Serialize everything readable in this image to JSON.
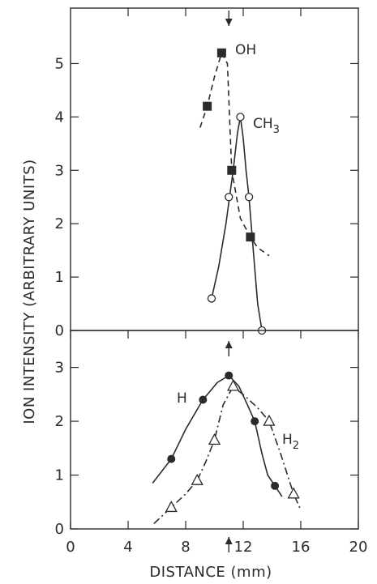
{
  "chart_data": [
    {
      "panel": "top",
      "type": "line",
      "xlim": [
        0,
        20
      ],
      "ylim": [
        0,
        5.5
      ],
      "yticks": [
        "0",
        "1",
        "2",
        "3",
        "4",
        "5"
      ],
      "series": [
        {
          "name": "OH",
          "name_sub": "",
          "marker": "filled-square",
          "line_style": "dashed",
          "points": [
            [
              9.5,
              4.2
            ],
            [
              10.5,
              5.2
            ],
            [
              11.2,
              3.0
            ],
            [
              12.5,
              1.75
            ]
          ],
          "curve": [
            [
              9.0,
              3.8
            ],
            [
              9.5,
              4.2
            ],
            [
              10.0,
              4.75
            ],
            [
              10.5,
              5.2
            ],
            [
              10.9,
              5.0
            ],
            [
              11.2,
              3.0
            ],
            [
              11.8,
              2.1
            ],
            [
              12.5,
              1.75
            ],
            [
              13.0,
              1.55
            ],
            [
              13.8,
              1.4
            ]
          ]
        },
        {
          "name": "CH",
          "name_sub": "3",
          "marker": "open-circle",
          "line_style": "solid",
          "points": [
            [
              9.8,
              0.6
            ],
            [
              11.0,
              2.5
            ],
            [
              11.8,
              4.0
            ],
            [
              12.4,
              2.5
            ],
            [
              13.3,
              0.0
            ]
          ],
          "curve": [
            [
              9.8,
              0.6
            ],
            [
              10.3,
              1.2
            ],
            [
              10.8,
              2.0
            ],
            [
              11.3,
              3.0
            ],
            [
              11.6,
              3.7
            ],
            [
              11.8,
              4.0
            ],
            [
              12.0,
              3.6
            ],
            [
              12.2,
              3.0
            ],
            [
              12.4,
              2.5
            ],
            [
              12.7,
              1.5
            ],
            [
              13.0,
              0.5
            ],
            [
              13.3,
              0.0
            ]
          ]
        }
      ],
      "markers": [
        {
          "x": 11.0,
          "direction": "down"
        }
      ],
      "ylabel": "ION INTENSITY (ARBITRARY UNITS)"
    },
    {
      "panel": "bottom",
      "type": "line",
      "xlim": [
        0,
        20
      ],
      "ylim": [
        0,
        3.25
      ],
      "xticks": [
        "0",
        "4",
        "8",
        "12",
        "16",
        "20"
      ],
      "xtick_values": [
        0,
        4,
        8,
        12,
        16,
        20
      ],
      "yticks": [
        "0",
        "1",
        "2",
        "3"
      ],
      "series": [
        {
          "name": "H",
          "name_sub": "",
          "marker": "filled-circle",
          "line_style": "solid",
          "points": [
            [
              7.0,
              1.3
            ],
            [
              9.2,
              2.4
            ],
            [
              11.0,
              2.85
            ],
            [
              12.8,
              2.0
            ],
            [
              14.2,
              0.8
            ]
          ],
          "curve": [
            [
              5.7,
              0.85
            ],
            [
              7.0,
              1.3
            ],
            [
              8.0,
              1.85
            ],
            [
              9.2,
              2.4
            ],
            [
              10.2,
              2.72
            ],
            [
              11.0,
              2.85
            ],
            [
              11.7,
              2.65
            ],
            [
              12.3,
              2.3
            ],
            [
              12.8,
              2.0
            ],
            [
              13.3,
              1.4
            ],
            [
              13.7,
              1.0
            ],
            [
              14.2,
              0.8
            ],
            [
              14.7,
              0.6
            ]
          ]
        },
        {
          "name": "H",
          "name_sub": "2",
          "marker": "open-triangle",
          "line_style": "dash-dot",
          "points": [
            [
              7.0,
              0.4
            ],
            [
              8.8,
              0.9
            ],
            [
              10.0,
              1.65
            ],
            [
              11.3,
              2.65
            ],
            [
              13.8,
              2.0
            ],
            [
              15.5,
              0.65
            ]
          ],
          "curve": [
            [
              5.8,
              0.1
            ],
            [
              7.0,
              0.4
            ],
            [
              8.0,
              0.65
            ],
            [
              8.8,
              0.9
            ],
            [
              9.4,
              1.25
            ],
            [
              10.0,
              1.65
            ],
            [
              10.6,
              2.3
            ],
            [
              11.3,
              2.65
            ],
            [
              12.2,
              2.45
            ],
            [
              13.0,
              2.25
            ],
            [
              13.8,
              2.0
            ],
            [
              14.6,
              1.4
            ],
            [
              15.5,
              0.65
            ],
            [
              16.0,
              0.35
            ]
          ]
        }
      ],
      "markers": [
        {
          "x": 11.0,
          "direction": "up"
        },
        {
          "x": 11.0,
          "direction": "up"
        }
      ],
      "xlabel": "DISTANCE (mm)"
    }
  ]
}
